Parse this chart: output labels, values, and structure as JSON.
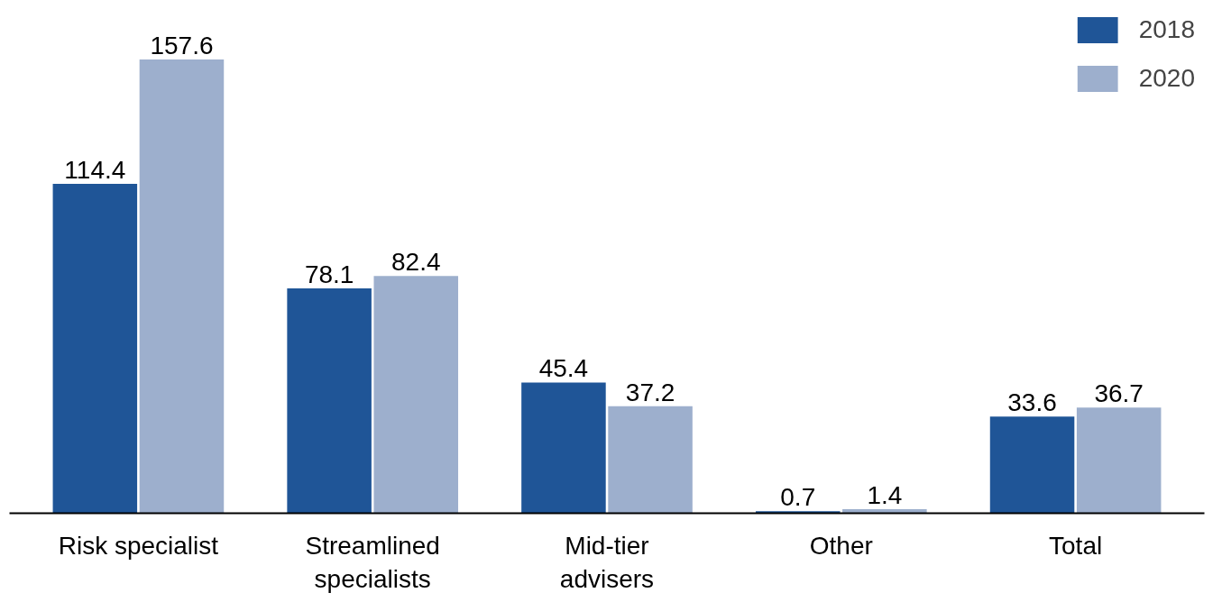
{
  "chart_data": {
    "type": "bar",
    "categories": [
      "Risk specialist",
      "Streamlined\nspecialists",
      "Mid-tier\nadvisers",
      "Other",
      "Total"
    ],
    "series": [
      {
        "name": "2018",
        "color": "#1f5597",
        "values": [
          114.4,
          78.1,
          45.4,
          0.7,
          33.6
        ]
      },
      {
        "name": "2020",
        "color": "#9dafcd",
        "values": [
          157.6,
          82.4,
          37.2,
          1.4,
          36.7
        ]
      }
    ],
    "data_labels": true,
    "legend": "top right",
    "grid": false
  }
}
